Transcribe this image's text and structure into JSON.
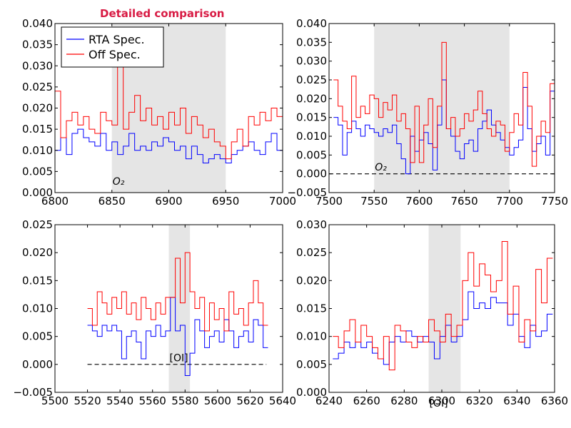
{
  "title": "Detailed comparison",
  "colors": {
    "rta": "#0000ff",
    "off": "#ff0000",
    "band": "#e5e5e5",
    "title": "#d81b44"
  },
  "legend": [
    {
      "name": "RTA Spec.",
      "color": "#0000ff"
    },
    {
      "name": "Off Spec.",
      "color": "#ff0000"
    }
  ],
  "chart_data": [
    {
      "type": "line",
      "xlim": [
        6800,
        7000
      ],
      "ylim": [
        0.0,
        0.04
      ],
      "xticks": [
        6800,
        6850,
        6900,
        6950,
        7000
      ],
      "yticks": [
        0.0,
        0.005,
        0.01,
        0.015,
        0.02,
        0.025,
        0.03,
        0.035,
        0.04
      ],
      "xtick_labels": [
        "6800",
        "6850",
        "6900",
        "6950",
        "7000"
      ],
      "ytick_labels": [
        "0.000",
        "0.005",
        "0.010",
        "0.015",
        "0.020",
        "0.025",
        "0.030",
        "0.035",
        "0.040"
      ],
      "shaded": [
        6850,
        6950
      ],
      "zero_line": false,
      "annotation": {
        "text": "O₂",
        "x": 6850,
        "y": 0.0015
      },
      "series": [
        {
          "name": "RTA Spec.",
          "color": "#0000ff",
          "x": [
            6800,
            6805,
            6810,
            6815,
            6820,
            6825,
            6830,
            6835,
            6840,
            6845,
            6850,
            6855,
            6860,
            6865,
            6870,
            6875,
            6880,
            6885,
            6890,
            6895,
            6900,
            6905,
            6910,
            6915,
            6920,
            6925,
            6930,
            6935,
            6940,
            6945,
            6950,
            6955,
            6960,
            6965,
            6970,
            6975,
            6980,
            6985,
            6990,
            6995,
            7000
          ],
          "y": [
            0.01,
            0.013,
            0.009,
            0.014,
            0.015,
            0.013,
            0.012,
            0.011,
            0.014,
            0.01,
            0.012,
            0.009,
            0.011,
            0.014,
            0.01,
            0.011,
            0.01,
            0.012,
            0.011,
            0.013,
            0.012,
            0.01,
            0.011,
            0.008,
            0.011,
            0.009,
            0.007,
            0.008,
            0.009,
            0.008,
            0.007,
            0.009,
            0.01,
            0.011,
            0.012,
            0.01,
            0.009,
            0.012,
            0.014,
            0.01,
            0.008
          ]
        },
        {
          "name": "Off Spec.",
          "color": "#ff0000",
          "x": [
            6800,
            6805,
            6810,
            6815,
            6820,
            6825,
            6830,
            6835,
            6840,
            6845,
            6850,
            6855,
            6860,
            6865,
            6870,
            6875,
            6880,
            6885,
            6890,
            6895,
            6900,
            6905,
            6910,
            6915,
            6920,
            6925,
            6930,
            6935,
            6940,
            6945,
            6950,
            6955,
            6960,
            6965,
            6970,
            6975,
            6980,
            6985,
            6990,
            6995,
            7000
          ],
          "y": [
            0.024,
            0.013,
            0.017,
            0.019,
            0.016,
            0.018,
            0.015,
            0.014,
            0.019,
            0.017,
            0.016,
            0.035,
            0.015,
            0.019,
            0.023,
            0.017,
            0.02,
            0.016,
            0.018,
            0.015,
            0.019,
            0.016,
            0.02,
            0.014,
            0.018,
            0.016,
            0.013,
            0.015,
            0.012,
            0.011,
            0.008,
            0.012,
            0.015,
            0.011,
            0.018,
            0.016,
            0.019,
            0.017,
            0.02,
            0.018,
            0.017
          ]
        }
      ]
    },
    {
      "type": "line",
      "xlim": [
        7500,
        7750
      ],
      "ylim": [
        -0.005,
        0.04
      ],
      "xticks": [
        7500,
        7550,
        7600,
        7650,
        7700,
        7750
      ],
      "yticks": [
        -0.005,
        0.0,
        0.005,
        0.01,
        0.015,
        0.02,
        0.025,
        0.03,
        0.035,
        0.04
      ],
      "xtick_labels": [
        "7500",
        "7550",
        "7600",
        "7650",
        "7700",
        "7750"
      ],
      "ytick_labels": [
        "−0.005",
        "0.000",
        "0.005",
        "0.010",
        "0.015",
        "0.020",
        "0.025",
        "0.030",
        "0.035",
        "0.040"
      ],
      "shaded": [
        7550,
        7700
      ],
      "zero_line": true,
      "annotation": {
        "text": "O₂",
        "x": 7550,
        "y": 0.0005
      },
      "series": [
        {
          "name": "RTA Spec.",
          "color": "#0000ff",
          "x": [
            7505,
            7510,
            7515,
            7520,
            7525,
            7530,
            7535,
            7540,
            7545,
            7550,
            7555,
            7560,
            7565,
            7570,
            7575,
            7580,
            7585,
            7590,
            7595,
            7600,
            7605,
            7610,
            7615,
            7620,
            7625,
            7630,
            7635,
            7640,
            7645,
            7650,
            7655,
            7660,
            7665,
            7670,
            7675,
            7680,
            7685,
            7690,
            7695,
            7700,
            7705,
            7710,
            7715,
            7720,
            7725,
            7730,
            7735,
            7740,
            7745
          ],
          "y": [
            0.015,
            0.013,
            0.005,
            0.011,
            0.014,
            0.012,
            0.01,
            0.013,
            0.012,
            0.011,
            0.01,
            0.012,
            0.011,
            0.013,
            0.008,
            0.004,
            0.0,
            0.01,
            0.006,
            0.009,
            0.011,
            0.008,
            0.001,
            0.013,
            0.025,
            0.012,
            0.01,
            0.006,
            0.004,
            0.008,
            0.009,
            0.006,
            0.012,
            0.014,
            0.017,
            0.013,
            0.011,
            0.009,
            0.007,
            0.005,
            0.007,
            0.009,
            0.023,
            0.012,
            0.006,
            0.008,
            0.01,
            0.005,
            0.022
          ]
        },
        {
          "name": "Off Spec.",
          "color": "#ff0000",
          "x": [
            7505,
            7510,
            7515,
            7520,
            7525,
            7530,
            7535,
            7540,
            7545,
            7550,
            7555,
            7560,
            7565,
            7570,
            7575,
            7580,
            7585,
            7590,
            7595,
            7600,
            7605,
            7610,
            7615,
            7620,
            7625,
            7630,
            7635,
            7640,
            7645,
            7650,
            7655,
            7660,
            7665,
            7670,
            7675,
            7680,
            7685,
            7690,
            7695,
            7700,
            7705,
            7710,
            7715,
            7720,
            7725,
            7730,
            7735,
            7740,
            7745
          ],
          "y": [
            0.025,
            0.018,
            0.014,
            0.012,
            0.026,
            0.015,
            0.018,
            0.016,
            0.021,
            0.02,
            0.015,
            0.019,
            0.017,
            0.021,
            0.014,
            0.016,
            0.012,
            0.003,
            0.018,
            0.003,
            0.013,
            0.02,
            0.007,
            0.018,
            0.035,
            0.012,
            0.015,
            0.01,
            0.012,
            0.016,
            0.014,
            0.017,
            0.022,
            0.016,
            0.012,
            0.01,
            0.014,
            0.013,
            0.006,
            0.011,
            0.016,
            0.013,
            0.027,
            0.018,
            0.002,
            0.01,
            0.014,
            0.011,
            0.024
          ]
        }
      ]
    },
    {
      "type": "line",
      "xlim": [
        5500,
        5640
      ],
      "ylim": [
        -0.005,
        0.025
      ],
      "xticks": [
        5500,
        5520,
        5540,
        5560,
        5580,
        5600,
        5620,
        5640
      ],
      "yticks": [
        -0.005,
        0.0,
        0.005,
        0.01,
        0.015,
        0.02,
        0.025
      ],
      "xtick_labels": [
        "5500",
        "5520",
        "5540",
        "5560",
        "5580",
        "5600",
        "5620",
        "5640"
      ],
      "ytick_labels": [
        "−0.005",
        "0.000",
        "0.005",
        "0.010",
        "0.015",
        "0.020",
        "0.025"
      ],
      "shaded": [
        5570,
        5583
      ],
      "zero_line": true,
      "zero_line_range": [
        5520,
        5630
      ],
      "annotation": {
        "text": "[OI]",
        "x": 5570,
        "y": 0.0003
      },
      "series": [
        {
          "name": "RTA Spec.",
          "color": "#0000ff",
          "x": [
            5520,
            5523,
            5526,
            5529,
            5532,
            5535,
            5538,
            5541,
            5544,
            5547,
            5550,
            5553,
            5556,
            5559,
            5562,
            5565,
            5568,
            5571,
            5574,
            5577,
            5580,
            5583,
            5586,
            5589,
            5592,
            5595,
            5598,
            5601,
            5604,
            5607,
            5610,
            5613,
            5616,
            5619,
            5622,
            5625,
            5628
          ],
          "y": [
            0.007,
            0.006,
            0.005,
            0.007,
            0.006,
            0.007,
            0.006,
            0.001,
            0.005,
            0.006,
            0.004,
            0.001,
            0.006,
            0.005,
            0.007,
            0.005,
            0.006,
            0.012,
            0.006,
            0.007,
            -0.002,
            0.002,
            0.008,
            0.006,
            0.003,
            0.005,
            0.006,
            0.004,
            0.008,
            0.006,
            0.003,
            0.005,
            0.006,
            0.004,
            0.008,
            0.007,
            0.003
          ]
        },
        {
          "name": "Off Spec.",
          "color": "#ff0000",
          "x": [
            5520,
            5523,
            5526,
            5529,
            5532,
            5535,
            5538,
            5541,
            5544,
            5547,
            5550,
            5553,
            5556,
            5559,
            5562,
            5565,
            5568,
            5571,
            5574,
            5577,
            5580,
            5583,
            5586,
            5589,
            5592,
            5595,
            5598,
            5601,
            5604,
            5607,
            5610,
            5613,
            5616,
            5619,
            5622,
            5625,
            5628
          ],
          "y": [
            0.01,
            0.007,
            0.013,
            0.011,
            0.009,
            0.012,
            0.01,
            0.013,
            0.009,
            0.011,
            0.008,
            0.012,
            0.01,
            0.008,
            0.011,
            0.009,
            0.012,
            0.012,
            0.019,
            0.011,
            0.02,
            0.013,
            0.01,
            0.012,
            0.006,
            0.011,
            0.008,
            0.01,
            0.006,
            0.013,
            0.009,
            0.01,
            0.007,
            0.011,
            0.015,
            0.011,
            0.007
          ]
        }
      ]
    },
    {
      "type": "line",
      "xlim": [
        6240,
        6360
      ],
      "ylim": [
        0.0,
        0.03
      ],
      "xticks": [
        6240,
        6260,
        6280,
        6300,
        6320,
        6340,
        6360
      ],
      "yticks": [
        0.0,
        0.005,
        0.01,
        0.015,
        0.02,
        0.025,
        0.03
      ],
      "xtick_labels": [
        "6240",
        "6260",
        "6280",
        "6300",
        "6320",
        "6340",
        "6360"
      ],
      "ytick_labels": [
        "0.000",
        "0.005",
        "0.010",
        "0.015",
        "0.020",
        "0.025",
        "0.030"
      ],
      "shaded": [
        6293,
        6310
      ],
      "zero_line": false,
      "annotation": {
        "text": "[OI]",
        "x": 6293,
        "y": -0.0005
      },
      "series": [
        {
          "name": "RTA Spec.",
          "color": "#0000ff",
          "x": [
            6242,
            6245,
            6248,
            6251,
            6254,
            6257,
            6260,
            6263,
            6266,
            6269,
            6272,
            6275,
            6278,
            6281,
            6284,
            6287,
            6290,
            6293,
            6296,
            6299,
            6302,
            6305,
            6308,
            6311,
            6314,
            6317,
            6320,
            6323,
            6326,
            6329,
            6332,
            6335,
            6338,
            6341,
            6344,
            6347,
            6350,
            6353,
            6356
          ],
          "y": [
            0.006,
            0.007,
            0.009,
            0.008,
            0.009,
            0.008,
            0.009,
            0.007,
            0.006,
            0.005,
            0.009,
            0.01,
            0.009,
            0.011,
            0.01,
            0.009,
            0.01,
            0.009,
            0.006,
            0.01,
            0.012,
            0.009,
            0.01,
            0.013,
            0.018,
            0.015,
            0.016,
            0.015,
            0.017,
            0.016,
            0.016,
            0.012,
            0.014,
            0.01,
            0.008,
            0.012,
            0.01,
            0.011,
            0.014
          ]
        },
        {
          "name": "Off Spec.",
          "color": "#ff0000",
          "x": [
            6242,
            6245,
            6248,
            6251,
            6254,
            6257,
            6260,
            6263,
            6266,
            6269,
            6272,
            6275,
            6278,
            6281,
            6284,
            6287,
            6290,
            6293,
            6296,
            6299,
            6302,
            6305,
            6308,
            6311,
            6314,
            6317,
            6320,
            6323,
            6326,
            6329,
            6332,
            6335,
            6338,
            6341,
            6344,
            6347,
            6350,
            6353,
            6356
          ],
          "y": [
            0.01,
            0.008,
            0.011,
            0.013,
            0.009,
            0.012,
            0.01,
            0.008,
            0.006,
            0.01,
            0.004,
            0.012,
            0.011,
            0.009,
            0.008,
            0.01,
            0.009,
            0.013,
            0.011,
            0.009,
            0.014,
            0.01,
            0.012,
            0.02,
            0.025,
            0.019,
            0.023,
            0.021,
            0.018,
            0.02,
            0.027,
            0.014,
            0.019,
            0.009,
            0.013,
            0.011,
            0.022,
            0.016,
            0.024
          ]
        }
      ]
    }
  ]
}
